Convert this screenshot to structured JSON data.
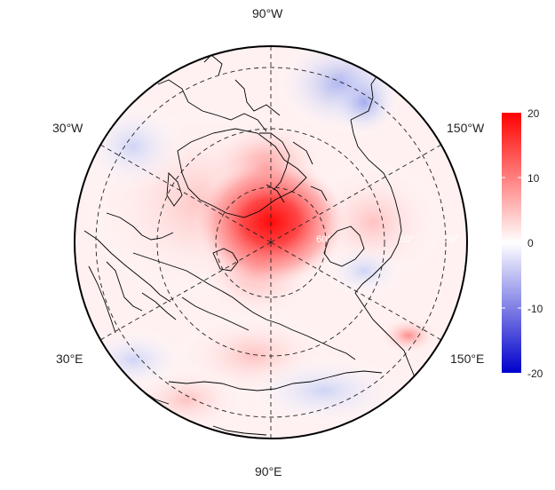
{
  "map": {
    "projection": "north-polar-stereographic",
    "lon_labels": {
      "top": "90°W",
      "bottom": "90°E",
      "upper_left": "30°W",
      "upper_right": "150°W",
      "lower_left": "30°E",
      "lower_right": "150°E"
    },
    "lat_labels": [
      "60°",
      "50°",
      "50°"
    ],
    "grid": "dashed graticule"
  },
  "colorbar": {
    "ticks": [
      "20",
      "10",
      "0",
      "-10",
      "-20"
    ],
    "range": [
      -20,
      20
    ],
    "colors": {
      "high": "#ff0000",
      "mid": "#ffffff",
      "low": "#0000cc"
    }
  }
}
